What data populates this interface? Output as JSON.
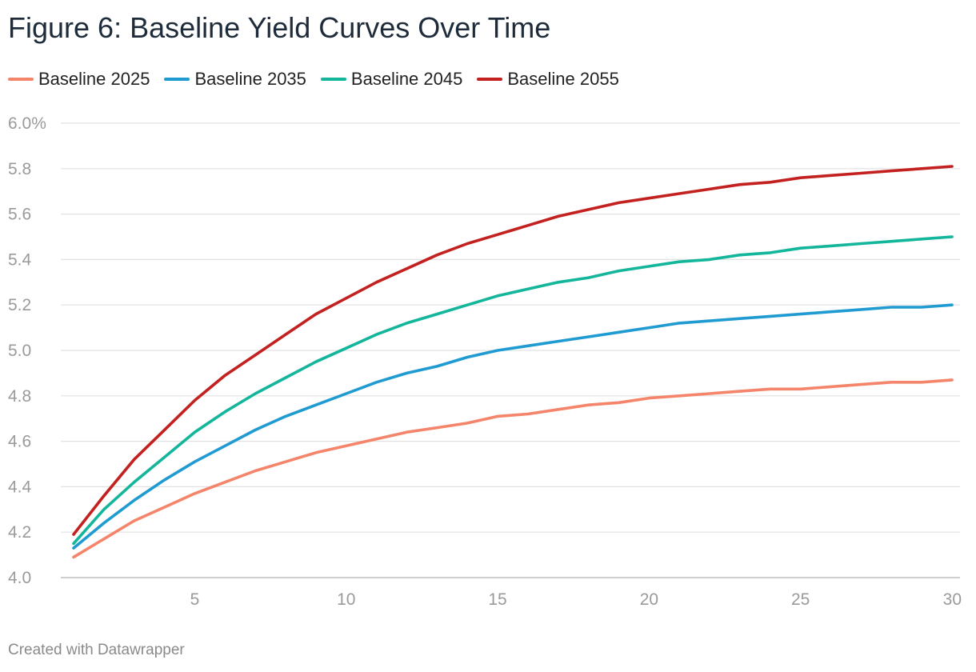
{
  "title": "Figure 6: Baseline Yield Curves Over Time",
  "footer": "Created with Datawrapper",
  "chart_data": {
    "type": "line",
    "title": "Figure 6: Baseline Yield Curves Over Time",
    "xlabel": "",
    "ylabel": "",
    "xlim": [
      1,
      30
    ],
    "ylim": [
      4.0,
      6.0
    ],
    "x_ticks": [
      5,
      10,
      15,
      20,
      25,
      30
    ],
    "y_ticks": [
      4.0,
      4.2,
      4.4,
      4.6,
      4.8,
      5.0,
      5.2,
      5.4,
      5.6,
      5.8,
      6.0
    ],
    "y_tick_labels": [
      "4.0",
      "4.2",
      "4.4",
      "4.6",
      "4.8",
      "5.0",
      "5.2",
      "5.4",
      "5.6",
      "5.8",
      "6.0%"
    ],
    "grid": true,
    "legend_position": "top-left",
    "x": [
      1,
      2,
      3,
      4,
      5,
      6,
      7,
      8,
      9,
      10,
      11,
      12,
      13,
      14,
      15,
      16,
      17,
      18,
      19,
      20,
      21,
      22,
      23,
      24,
      25,
      26,
      27,
      28,
      29,
      30
    ],
    "series": [
      {
        "name": "Baseline 2025",
        "color": "#f4846a",
        "values": [
          4.09,
          4.17,
          4.25,
          4.31,
          4.37,
          4.42,
          4.47,
          4.51,
          4.55,
          4.58,
          4.61,
          4.64,
          4.66,
          4.68,
          4.71,
          4.72,
          4.74,
          4.76,
          4.77,
          4.79,
          4.8,
          4.81,
          4.82,
          4.83,
          4.83,
          4.84,
          4.85,
          4.86,
          4.86,
          4.87
        ]
      },
      {
        "name": "Baseline 2035",
        "color": "#1f9bd1",
        "values": [
          4.13,
          4.24,
          4.34,
          4.43,
          4.51,
          4.58,
          4.65,
          4.71,
          4.76,
          4.81,
          4.86,
          4.9,
          4.93,
          4.97,
          5.0,
          5.02,
          5.04,
          5.06,
          5.08,
          5.1,
          5.12,
          5.13,
          5.14,
          5.15,
          5.16,
          5.17,
          5.18,
          5.19,
          5.19,
          5.2
        ]
      },
      {
        "name": "Baseline 2045",
        "color": "#13b59b",
        "values": [
          4.15,
          4.3,
          4.42,
          4.53,
          4.64,
          4.73,
          4.81,
          4.88,
          4.95,
          5.01,
          5.07,
          5.12,
          5.16,
          5.2,
          5.24,
          5.27,
          5.3,
          5.32,
          5.35,
          5.37,
          5.39,
          5.4,
          5.42,
          5.43,
          5.45,
          5.46,
          5.47,
          5.48,
          5.49,
          5.5
        ]
      },
      {
        "name": "Baseline 2055",
        "color": "#c3211f",
        "values": [
          4.19,
          4.36,
          4.52,
          4.65,
          4.78,
          4.89,
          4.98,
          5.07,
          5.16,
          5.23,
          5.3,
          5.36,
          5.42,
          5.47,
          5.51,
          5.55,
          5.59,
          5.62,
          5.65,
          5.67,
          5.69,
          5.71,
          5.73,
          5.74,
          5.76,
          5.77,
          5.78,
          5.79,
          5.8,
          5.81
        ]
      }
    ]
  }
}
